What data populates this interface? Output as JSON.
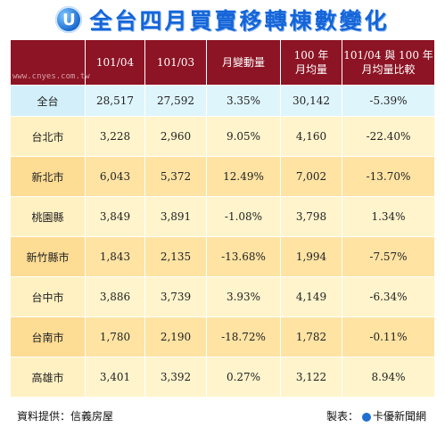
{
  "title": "全台四月買賣移轉棟數變化",
  "logo_letter": "U",
  "watermark": "www.cnyes.com.tw",
  "table": {
    "headers": [
      "",
      "101/04",
      "101/03",
      "月變動量",
      "100 年\n月均量",
      "101/04 與 100 年\n月均量比較"
    ],
    "rows": [
      {
        "name": "全台",
        "v1": "28,517",
        "v2": "27,592",
        "mom": "3.35%",
        "avg": "30,142",
        "cmp": "-5.39%"
      },
      {
        "name": "台北市",
        "v1": "3,228",
        "v2": "2,960",
        "mom": "9.05%",
        "avg": "4,160",
        "cmp": "-22.40%"
      },
      {
        "name": "新北市",
        "v1": "6,043",
        "v2": "5,372",
        "mom": "12.49%",
        "avg": "7,002",
        "cmp": "-13.70%"
      },
      {
        "name": "桃園縣",
        "v1": "3,849",
        "v2": "3,891",
        "mom": "-1.08%",
        "avg": "3,798",
        "cmp": "1.34%"
      },
      {
        "name": "新竹縣市",
        "v1": "1,843",
        "v2": "2,135",
        "mom": "-13.68%",
        "avg": "1,994",
        "cmp": "-7.57%"
      },
      {
        "name": "台中市",
        "v1": "3,886",
        "v2": "3,739",
        "mom": "3.93%",
        "avg": "4,149",
        "cmp": "-6.34%"
      },
      {
        "name": "台南市",
        "v1": "1,780",
        "v2": "2,190",
        "mom": "-18.72%",
        "avg": "1,782",
        "cmp": "-0.11%"
      },
      {
        "name": "高雄市",
        "v1": "3,401",
        "v2": "3,392",
        "mom": "0.27%",
        "avg": "3,122",
        "cmp": "8.94%"
      }
    ]
  },
  "footer": {
    "source": "資料提供：信義房屋",
    "maker_label": "製表：",
    "maker_name": "卡優新聞網"
  },
  "colors": {
    "header_bg": "#8c1424",
    "title": "#1565d8",
    "total_row": "#dff5fc",
    "light_row": "#fff4cc",
    "dark_row": "#fee3a3"
  }
}
